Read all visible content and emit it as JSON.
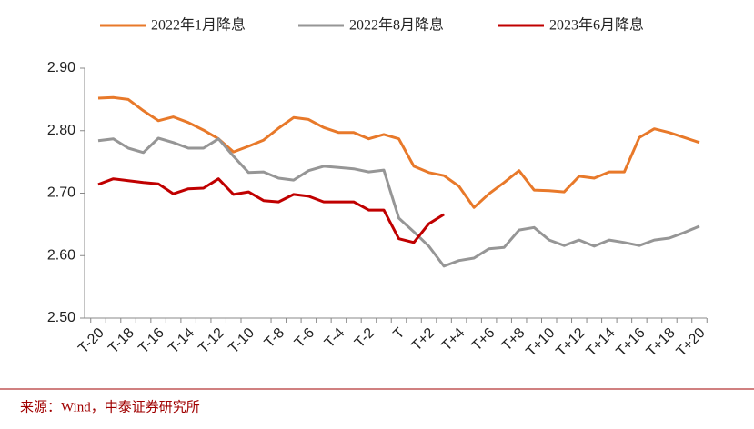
{
  "chart_data": {
    "type": "line",
    "categories": [
      "T-20",
      null,
      "T-18",
      null,
      "T-16",
      null,
      "T-14",
      null,
      "T-12",
      null,
      "T-10",
      null,
      "T-8",
      null,
      "T-6",
      null,
      "T-4",
      null,
      "T-2",
      null,
      "T",
      null,
      "T+2",
      null,
      "T+4",
      null,
      "T+6",
      null,
      "T+8",
      null,
      "T+10",
      null,
      "T+12",
      null,
      "T+14",
      null,
      "T+16",
      null,
      "T+18",
      null,
      "T+20"
    ],
    "series": [
      {
        "name": "2022年1月降息",
        "color": "#e8792a",
        "values": [
          2.852,
          2.853,
          2.85,
          2.832,
          2.816,
          2.822,
          2.813,
          2.801,
          2.787,
          2.766,
          2.775,
          2.785,
          2.804,
          2.821,
          2.818,
          2.805,
          2.797,
          2.797,
          2.787,
          2.794,
          2.787,
          2.743,
          2.733,
          2.728,
          2.711,
          2.677,
          2.699,
          2.717,
          2.736,
          2.705,
          2.704,
          2.702,
          2.727,
          2.724,
          2.734,
          2.734,
          2.789,
          2.803,
          2.797,
          2.789,
          2.781
        ]
      },
      {
        "name": "2022年8月降息",
        "color": "#969696",
        "values": [
          2.784,
          2.787,
          2.772,
          2.765,
          2.788,
          2.781,
          2.772,
          2.772,
          2.787,
          2.759,
          2.733,
          2.734,
          2.724,
          2.721,
          2.736,
          2.743,
          2.741,
          2.739,
          2.734,
          2.737,
          2.66,
          2.638,
          2.615,
          2.583,
          2.592,
          2.596,
          2.611,
          2.613,
          2.641,
          2.645,
          2.625,
          2.616,
          2.625,
          2.615,
          2.625,
          2.621,
          2.616,
          2.625,
          2.628,
          2.637,
          2.647
        ]
      },
      {
        "name": "2023年6月降息",
        "color": "#c00000",
        "values": [
          2.714,
          2.723,
          2.72,
          2.717,
          2.715,
          2.699,
          2.707,
          2.708,
          2.723,
          2.698,
          2.702,
          2.688,
          2.686,
          2.698,
          2.695,
          2.686,
          2.686,
          2.686,
          2.673,
          2.673,
          2.627,
          2.621,
          2.651,
          2.666,
          null,
          null,
          null,
          null,
          null,
          null,
          null,
          null,
          null,
          null,
          null,
          null,
          null,
          null,
          null,
          null,
          null
        ]
      }
    ],
    "ylim": [
      2.5,
      2.9
    ],
    "yticks": [
      {
        "value": 2.5,
        "label": "2.50"
      },
      {
        "value": 2.6,
        "label": "2.60"
      },
      {
        "value": 2.7,
        "label": "2.70"
      },
      {
        "value": 2.8,
        "label": "2.80"
      },
      {
        "value": 2.9,
        "label": "2.90"
      }
    ],
    "source": "来源：Wind，中泰证券研究所"
  }
}
